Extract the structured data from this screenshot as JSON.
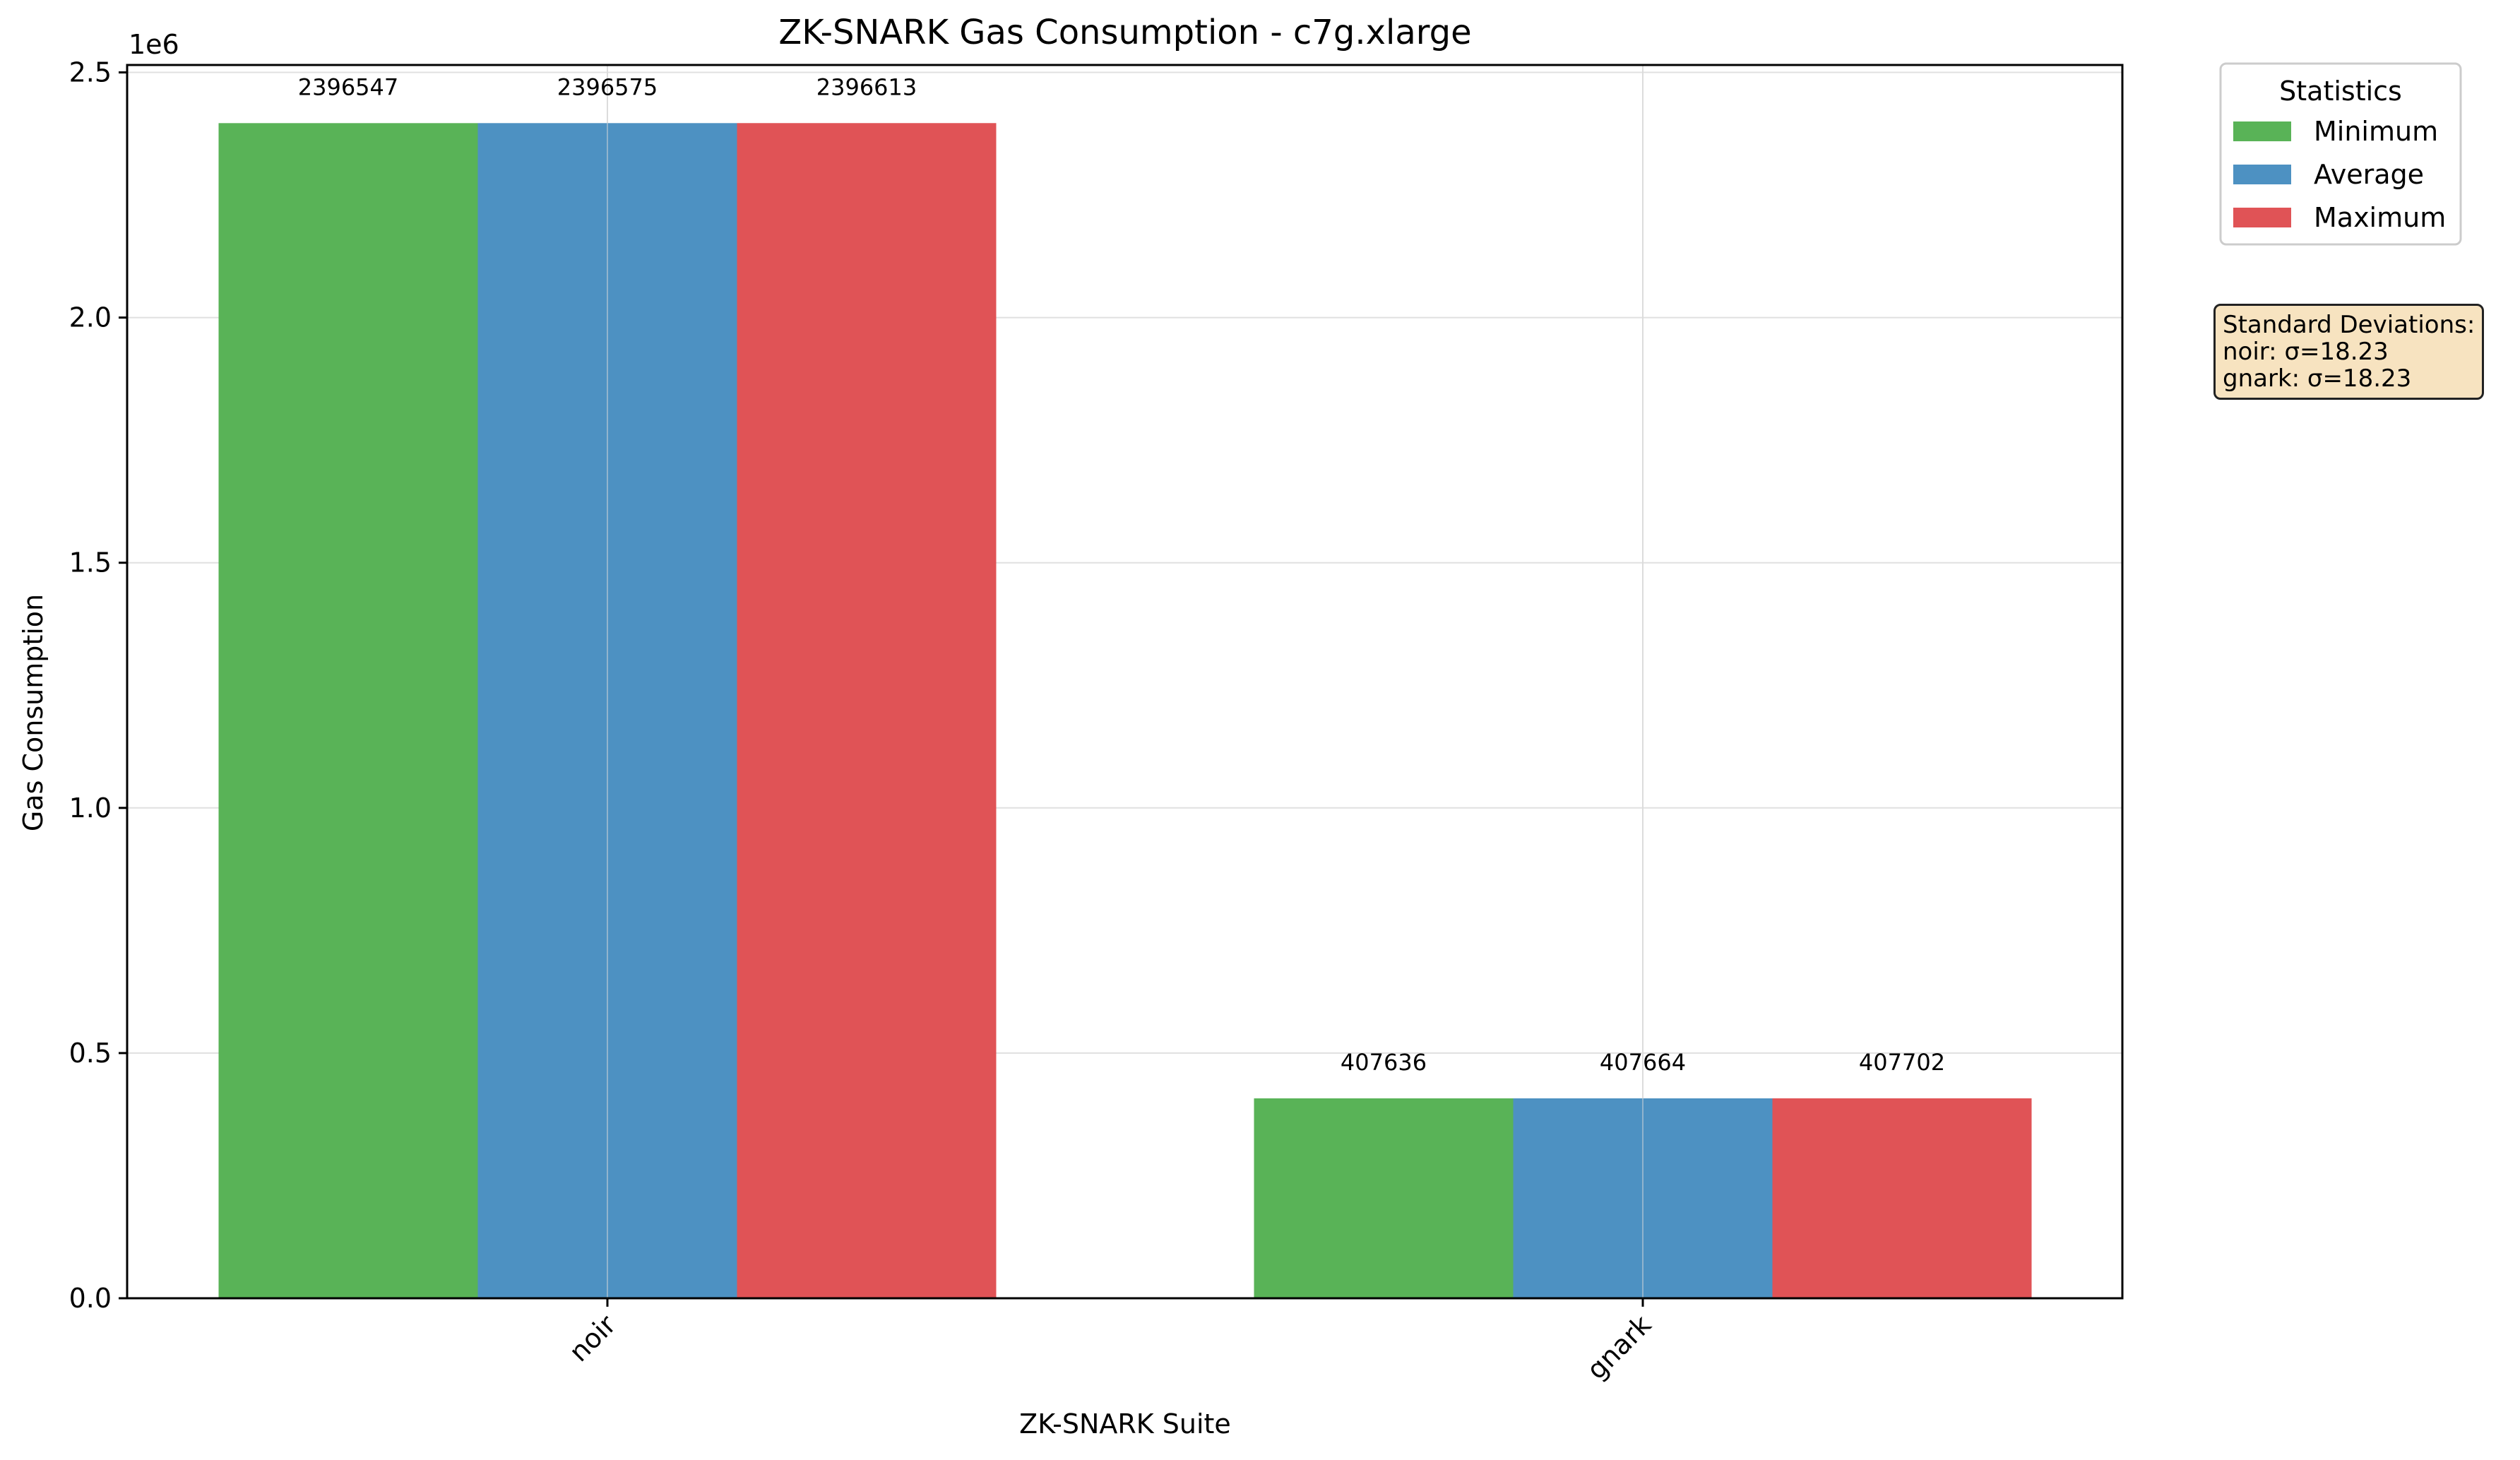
{
  "chart_data": {
    "type": "bar",
    "title": "ZK-SNARK Gas Consumption - c7g.xlarge",
    "xlabel": "ZK-SNARK Suite",
    "ylabel": "Gas Consumption",
    "y_multiplier_label": "1e6",
    "categories": [
      "noir",
      "gnark"
    ],
    "ylim": [
      0,
      2500000
    ],
    "yticks": [
      0,
      500000,
      1000000,
      1500000,
      2000000,
      2500000
    ],
    "ytick_labels": [
      "0.0",
      "0.5",
      "1.0",
      "1.5",
      "2.0",
      "2.5"
    ],
    "series": [
      {
        "name": "Minimum",
        "color": "#59b357",
        "values": [
          2396547,
          407636
        ]
      },
      {
        "name": "Average",
        "color": "#4d91c2",
        "values": [
          2396575,
          407664
        ]
      },
      {
        "name": "Maximum",
        "color": "#e05356",
        "values": [
          2396613,
          407702
        ]
      }
    ],
    "legend_title": "Statistics",
    "legend_position": "outside top-right",
    "grid": true,
    "annotation": {
      "title": "Standard Deviations:",
      "lines": [
        "noir: σ=18.23",
        "gnark: σ=18.23"
      ]
    }
  }
}
